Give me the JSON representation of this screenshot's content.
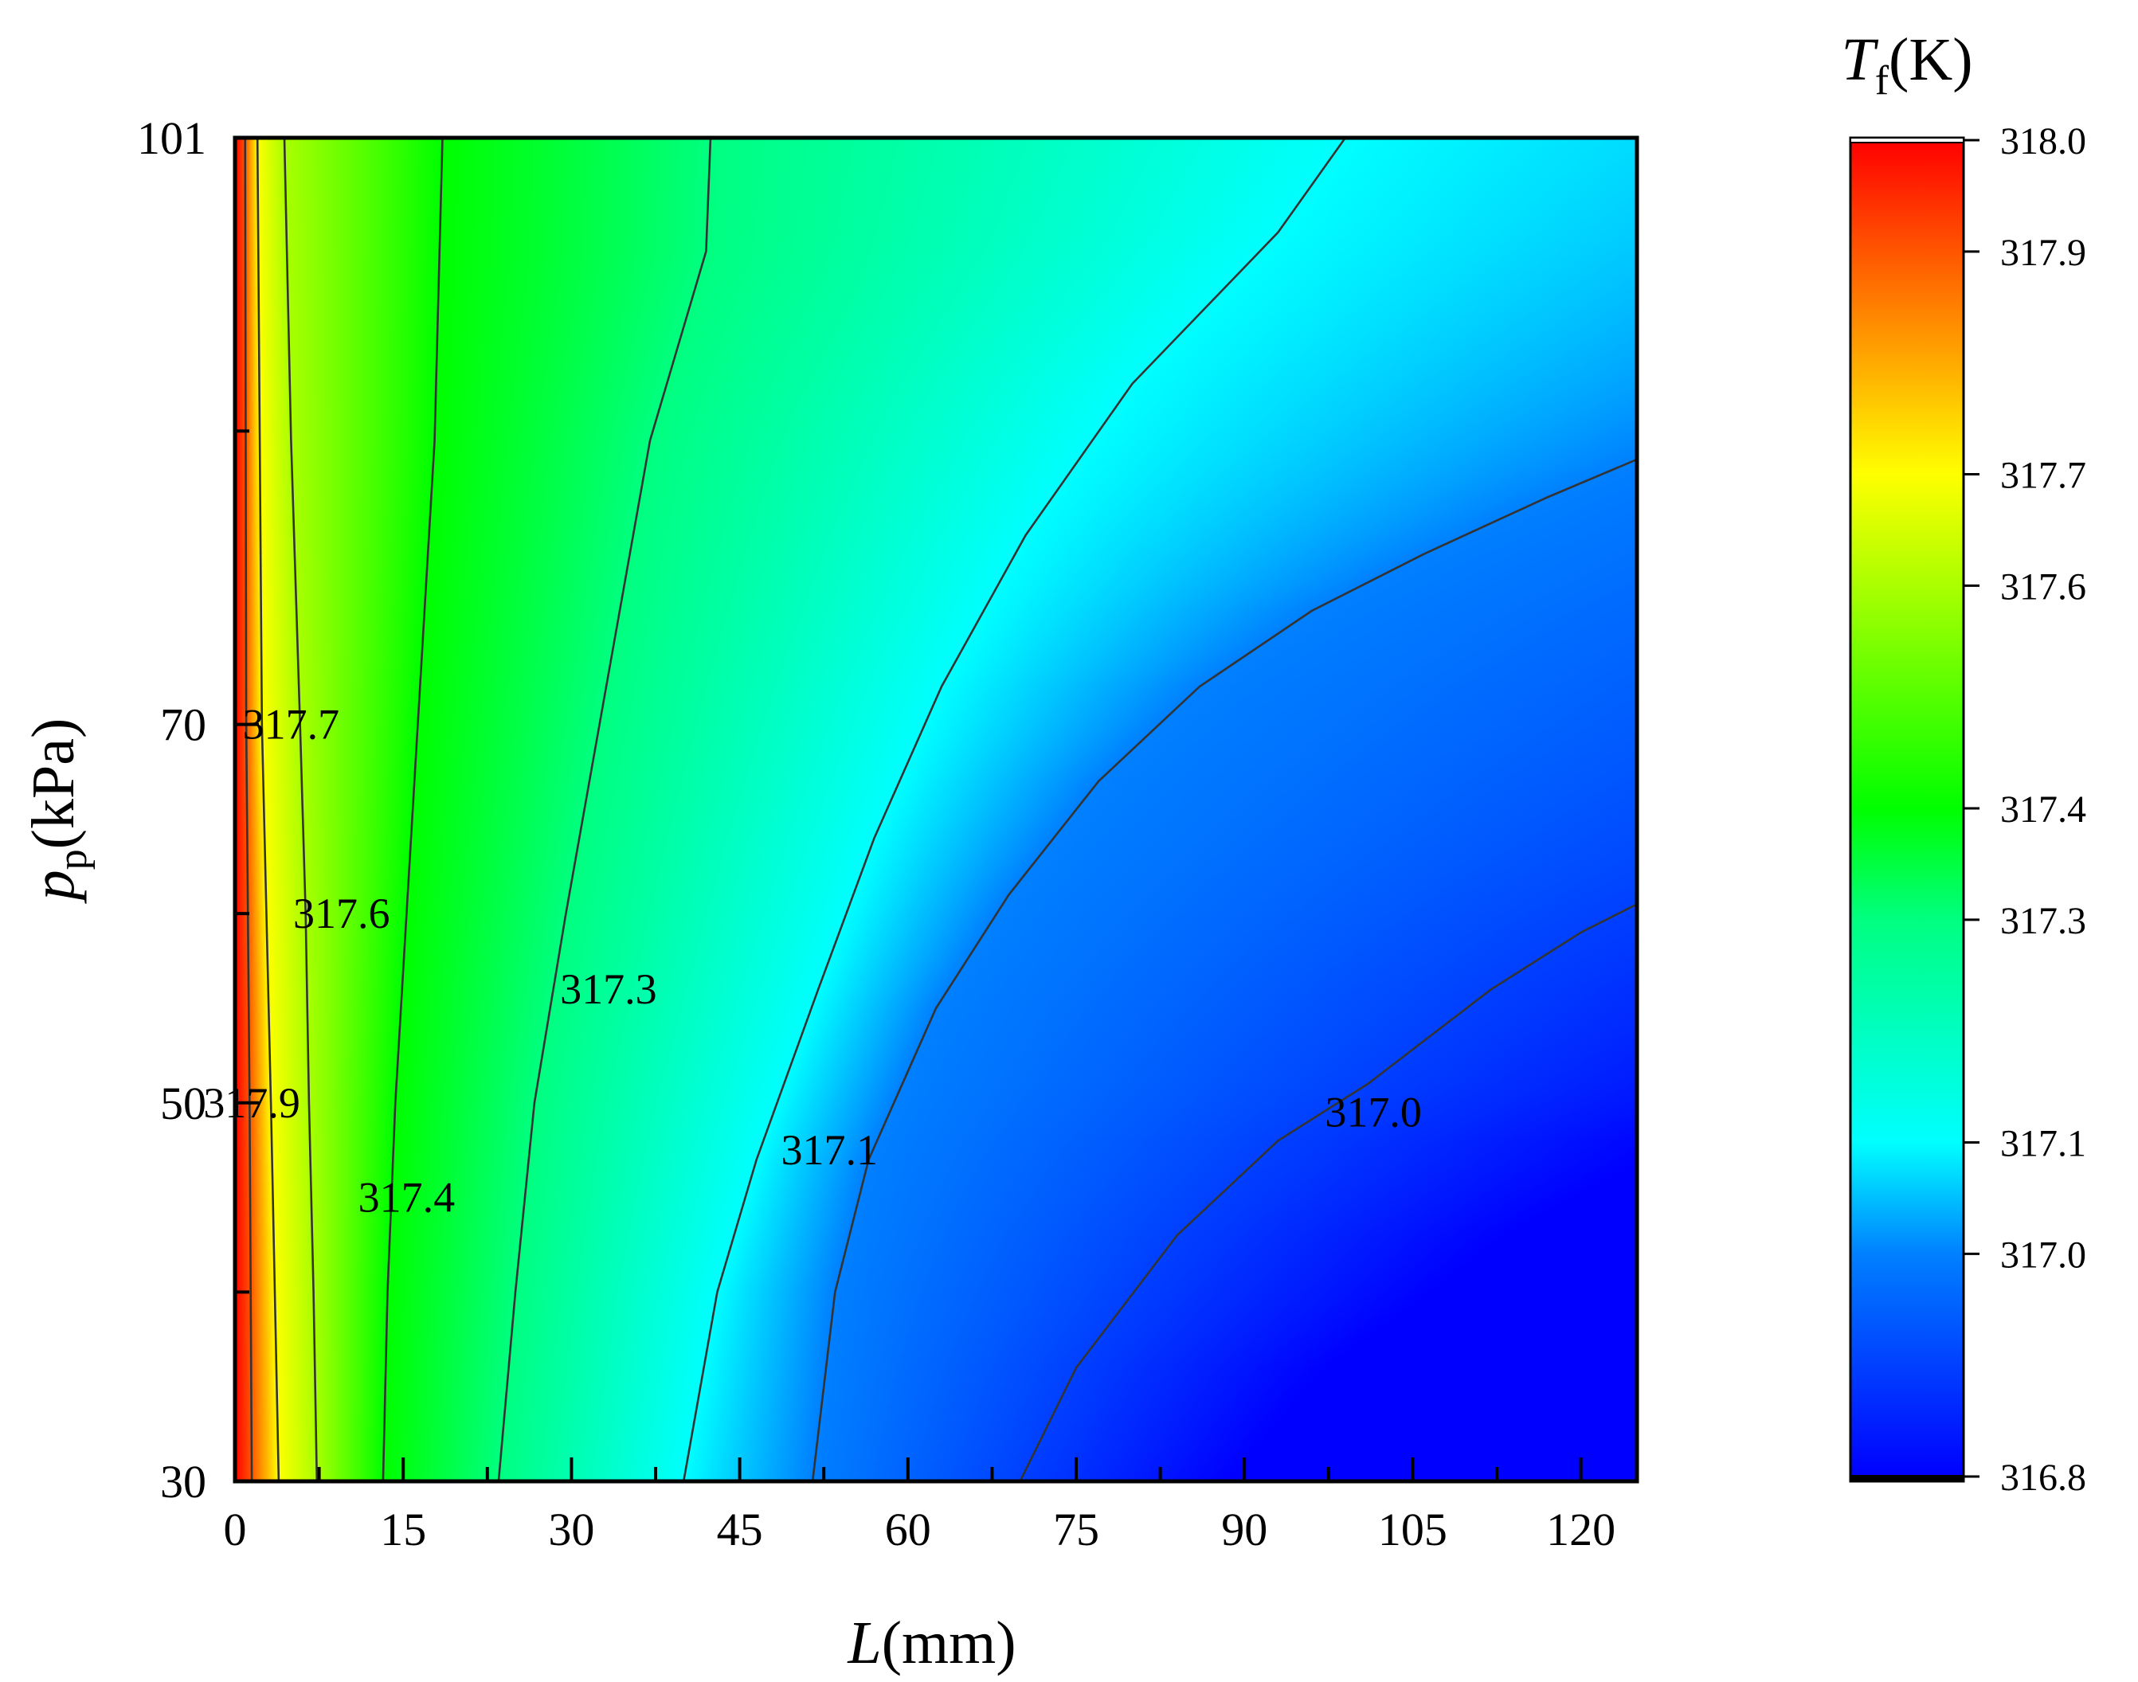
{
  "chart_data": {
    "type": "heatmap",
    "subtype": "filled-contour",
    "xlabel": {
      "symbol": "L",
      "unit": "(mm)"
    },
    "ylabel": {
      "symbol": "p",
      "subscript": "p",
      "unit": "(kPa)"
    },
    "colorbar_title": {
      "symbol": "T",
      "subscript": "f",
      "unit": "(K)"
    },
    "xlim": [
      0,
      125
    ],
    "ylim": [
      30,
      101
    ],
    "x_ticks": [
      0,
      15,
      30,
      45,
      60,
      75,
      90,
      105,
      120
    ],
    "x_tick_labels": [
      "0",
      "15",
      "30",
      "45",
      "60",
      "75",
      "90",
      "105",
      "120"
    ],
    "x_minor_ticks": [
      7.5,
      22.5,
      37.5,
      52.5,
      67.5,
      82.5,
      97.5,
      112.5
    ],
    "y_ticks": [
      30,
      50,
      70,
      101
    ],
    "y_tick_labels": [
      "30",
      "50",
      "70",
      "101"
    ],
    "y_minor_ticks": [
      40,
      60,
      85.5
    ],
    "colorbar": {
      "range": [
        316.8,
        318.0
      ],
      "ticks": [
        318.0,
        317.9,
        317.7,
        317.6,
        317.4,
        317.3,
        317.1,
        317.0,
        316.8
      ],
      "tick_labels": [
        "318.0",
        "317.9",
        "317.7",
        "317.6",
        "317.4",
        "317.3",
        "317.1",
        "317.0",
        "316.8"
      ],
      "colormap": [
        {
          "v": 316.8,
          "color": "#0000ff"
        },
        {
          "v": 317.0,
          "color": "#0080ff"
        },
        {
          "v": 317.1,
          "color": "#00ffff"
        },
        {
          "v": 317.3,
          "color": "#00ff80"
        },
        {
          "v": 317.4,
          "color": "#00ff00"
        },
        {
          "v": 317.7,
          "color": "#ffff00"
        },
        {
          "v": 317.85,
          "color": "#ff8000"
        },
        {
          "v": 318.0,
          "color": "#ff0000"
        }
      ]
    },
    "contours": [
      {
        "level": 317.9,
        "label": "317.9",
        "points": [
          [
            1.5,
            30
          ],
          [
            1.3,
            50
          ],
          [
            1.0,
            70
          ],
          [
            0.9,
            101
          ]
        ],
        "label_at": [
          1.5,
          50
        ]
      },
      {
        "level": 317.7,
        "label": "317.7",
        "points": [
          [
            3.9,
            30
          ],
          [
            3.2,
            50
          ],
          [
            2.4,
            70
          ],
          [
            2.0,
            101
          ]
        ],
        "label_at": [
          5.0,
          70
        ]
      },
      {
        "level": 317.6,
        "label": "317.6",
        "points": [
          [
            7.3,
            30
          ],
          [
            7.0,
            40
          ],
          [
            6.6,
            50
          ],
          [
            6.3,
            60
          ],
          [
            5.8,
            70
          ],
          [
            5.0,
            85
          ],
          [
            4.4,
            101
          ]
        ],
        "label_at": [
          9.5,
          60
        ]
      },
      {
        "level": 317.4,
        "label": "317.4",
        "points": [
          [
            13.2,
            30
          ],
          [
            13.6,
            40
          ],
          [
            14.3,
            50
          ],
          [
            15.3,
            60
          ],
          [
            16.3,
            70
          ],
          [
            17.8,
            85
          ],
          [
            18.5,
            101
          ]
        ],
        "label_at": [
          15.3,
          45
        ]
      },
      {
        "level": 317.3,
        "label": "317.3",
        "points": [
          [
            23.5,
            30
          ],
          [
            25.0,
            40
          ],
          [
            26.7,
            50
          ],
          [
            29.5,
            60
          ],
          [
            32.5,
            70
          ],
          [
            37.0,
            85
          ],
          [
            42.0,
            95
          ],
          [
            42.4,
            101
          ]
        ],
        "label_at": [
          33.3,
          56
        ]
      },
      {
        "level": 317.1,
        "label": "317.1",
        "points": [
          [
            40.0,
            30
          ],
          [
            43.0,
            40
          ],
          [
            46.5,
            47
          ],
          [
            52.0,
            56
          ],
          [
            57.0,
            64
          ],
          [
            63.0,
            72
          ],
          [
            70.5,
            80
          ],
          [
            80.0,
            88
          ],
          [
            93.0,
            96
          ],
          [
            99.0,
            101
          ]
        ],
        "label_at": [
          53.0,
          47.5
        ]
      },
      {
        "level": 317.0,
        "label": "317.0",
        "points": [
          [
            51.5,
            30
          ],
          [
            53.5,
            40
          ],
          [
            56.5,
            47
          ],
          [
            62.5,
            55
          ],
          [
            69.0,
            61
          ],
          [
            77.0,
            67
          ],
          [
            86.0,
            72
          ],
          [
            96.0,
            76
          ],
          [
            106.0,
            79
          ],
          [
            117.0,
            82
          ],
          [
            125.0,
            84
          ]
        ],
        "label_at": [
          101.5,
          49.5
        ]
      },
      {
        "level": 316.9,
        "label": "",
        "points": [
          [
            70.0,
            30
          ],
          [
            75.0,
            36
          ],
          [
            84.0,
            43
          ],
          [
            93.0,
            48
          ],
          [
            101.0,
            51
          ],
          [
            112.0,
            56
          ],
          [
            120.0,
            59
          ],
          [
            125.0,
            60.5
          ]
        ],
        "label_at": null
      }
    ]
  }
}
